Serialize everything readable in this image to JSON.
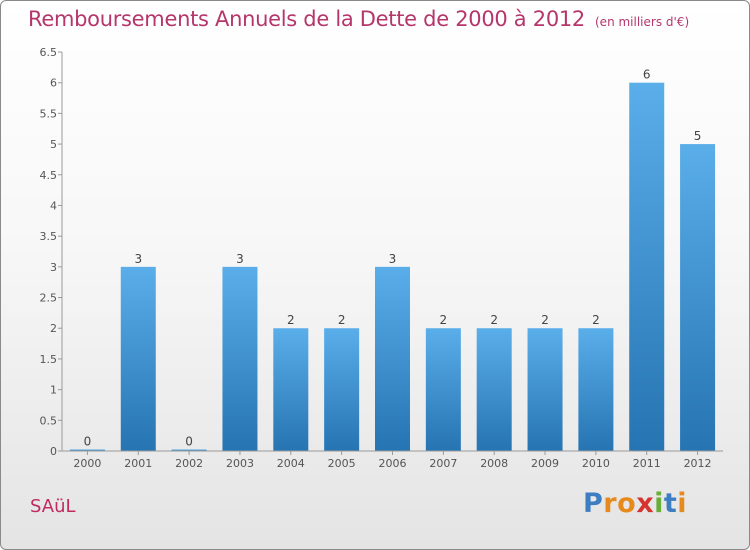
{
  "header": {
    "title": "Remboursements Annuels de la Dette de 2000 à 2012",
    "subtitle": "(en milliers d'€)"
  },
  "footer": {
    "commune": "SAüL",
    "logo": [
      "P",
      "r",
      "o",
      "x",
      "i",
      "t",
      "i"
    ]
  },
  "colors": {
    "title": "#b5366b",
    "bar_top": "#5aaee9",
    "bar_bottom": "#2674b2",
    "logo": [
      "#3d7ec2",
      "#e68a1e",
      "#e68a1e",
      "#d6352f",
      "#6aae3a",
      "#3d7ec2",
      "#e68a1e"
    ]
  },
  "chart_data": {
    "type": "bar",
    "categories": [
      "2000",
      "2001",
      "2002",
      "2003",
      "2004",
      "2005",
      "2006",
      "2007",
      "2008",
      "2009",
      "2010",
      "2011",
      "2012"
    ],
    "values": [
      0,
      3,
      0,
      3,
      2,
      2,
      3,
      2,
      2,
      2,
      2,
      6,
      5
    ],
    "data_labels": [
      "0",
      "3",
      "0",
      "3",
      "2",
      "2",
      "3",
      "2",
      "2",
      "2",
      "2",
      "6",
      "5"
    ],
    "y_ticks": [
      "0",
      "0.5",
      "1",
      "1.5",
      "2",
      "2.5",
      "3",
      "3.5",
      "4",
      "4.5",
      "5",
      "5.5",
      "6",
      "6.5"
    ],
    "ylim": [
      0,
      6.5
    ],
    "grid": false,
    "legend": "none"
  }
}
